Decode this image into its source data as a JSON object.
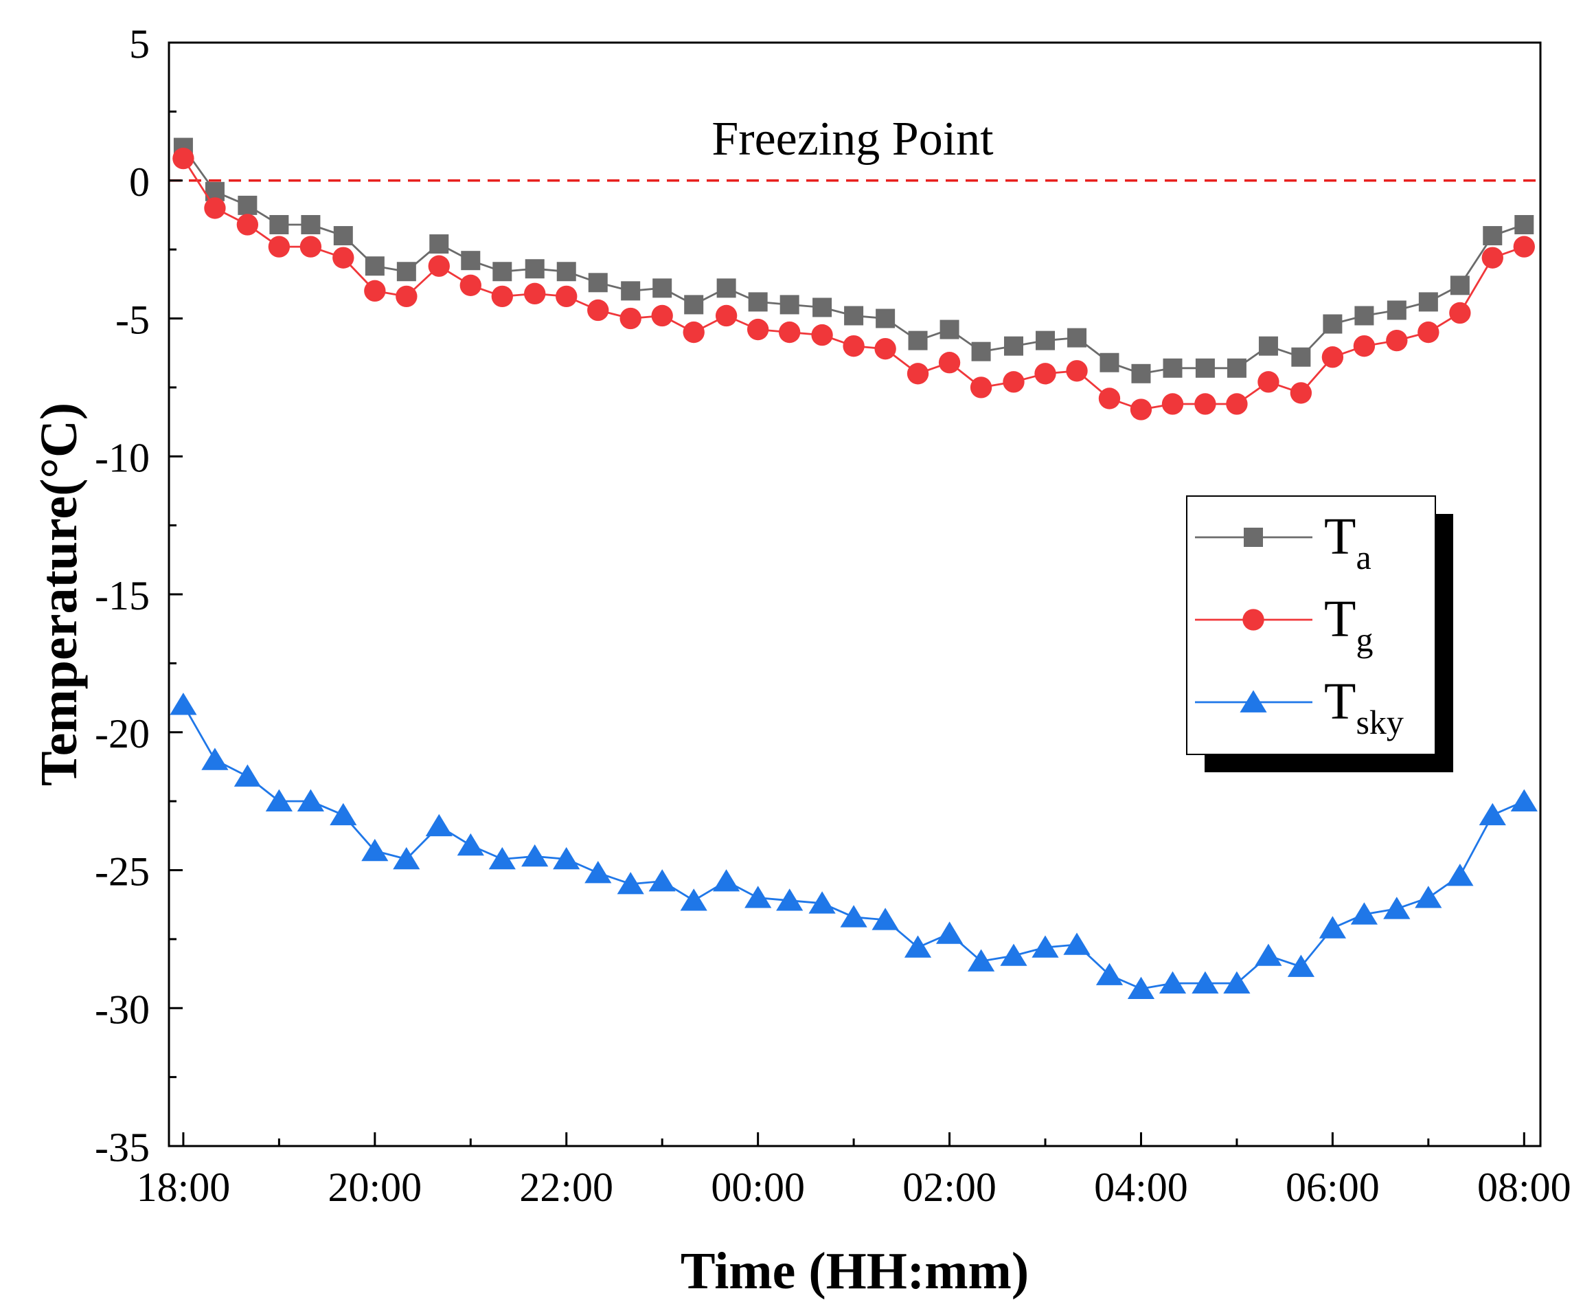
{
  "chart_data": {
    "type": "line",
    "xlabel": "Time (HH:mm)",
    "ylabel": "Temperature(°C)",
    "ylim": [
      -35,
      5
    ],
    "yticks": [
      5,
      0,
      -5,
      -10,
      -15,
      -20,
      -25,
      -30,
      -35
    ],
    "xlim": [
      17.85,
      32.17
    ],
    "xticks": [
      {
        "value": 18,
        "label": "18:00"
      },
      {
        "value": 20,
        "label": "20:00"
      },
      {
        "value": 22,
        "label": "22:00"
      },
      {
        "value": 24,
        "label": "00:00"
      },
      {
        "value": 26,
        "label": "02:00"
      },
      {
        "value": 28,
        "label": "04:00"
      },
      {
        "value": 30,
        "label": "06:00"
      },
      {
        "value": 32,
        "label": "08:00"
      }
    ],
    "reference_line": {
      "y": 0,
      "label": "Freezing Point",
      "color": "#e8201e"
    },
    "x": [
      18.0,
      18.33,
      18.67,
      19.0,
      19.33,
      19.67,
      20.0,
      20.33,
      20.67,
      21.0,
      21.33,
      21.67,
      22.0,
      22.33,
      22.67,
      23.0,
      23.33,
      23.67,
      24.0,
      24.33,
      24.67,
      25.0,
      25.33,
      25.67,
      26.0,
      26.33,
      26.67,
      27.0,
      27.33,
      27.67,
      28.0,
      28.33,
      28.67,
      29.0,
      29.33,
      29.67,
      30.0,
      30.33,
      30.67,
      31.0,
      31.33,
      31.67,
      32.0
    ],
    "series": [
      {
        "name": "T",
        "subscript": "a",
        "marker": "square",
        "color": "#6b6b6b",
        "values": [
          1.2,
          -0.4,
          -0.9,
          -1.6,
          -1.6,
          -2.0,
          -3.1,
          -3.3,
          -2.3,
          -2.9,
          -3.3,
          -3.2,
          -3.3,
          -3.7,
          -4.0,
          -3.9,
          -4.5,
          -3.9,
          -4.4,
          -4.5,
          -4.6,
          -4.9,
          -5.0,
          -5.8,
          -5.4,
          -6.2,
          -6.0,
          -5.8,
          -5.7,
          -6.6,
          -7.0,
          -6.8,
          -6.8,
          -6.8,
          -6.0,
          -6.4,
          -5.2,
          -4.9,
          -4.7,
          -4.4,
          -3.8,
          -2.0,
          -1.6
        ]
      },
      {
        "name": "T",
        "subscript": "g",
        "marker": "circle",
        "color": "#f0373a",
        "values": [
          0.8,
          -1.0,
          -1.6,
          -2.4,
          -2.4,
          -2.8,
          -4.0,
          -4.2,
          -3.1,
          -3.8,
          -4.2,
          -4.1,
          -4.2,
          -4.7,
          -5.0,
          -4.9,
          -5.5,
          -4.9,
          -5.4,
          -5.5,
          -5.6,
          -6.0,
          -6.1,
          -7.0,
          -6.6,
          -7.5,
          -7.3,
          -7.0,
          -6.9,
          -7.9,
          -8.3,
          -8.1,
          -8.1,
          -8.1,
          -7.3,
          -7.7,
          -6.4,
          -6.0,
          -5.8,
          -5.5,
          -4.8,
          -2.8,
          -2.4
        ]
      },
      {
        "name": "T",
        "subscript": "sky",
        "marker": "triangle",
        "color": "#1f77e8",
        "values": [
          -19.0,
          -21.0,
          -21.6,
          -22.5,
          -22.5,
          -23.0,
          -24.3,
          -24.6,
          -23.4,
          -24.1,
          -24.6,
          -24.5,
          -24.6,
          -25.1,
          -25.5,
          -25.4,
          -26.1,
          -25.4,
          -26.0,
          -26.1,
          -26.2,
          -26.7,
          -26.8,
          -27.8,
          -27.3,
          -28.3,
          -28.1,
          -27.8,
          -27.7,
          -28.8,
          -29.3,
          -29.1,
          -29.1,
          -29.1,
          -28.1,
          -28.5,
          -27.1,
          -26.6,
          -26.4,
          -26.0,
          -25.2,
          -23.0,
          -22.5
        ]
      }
    ]
  }
}
